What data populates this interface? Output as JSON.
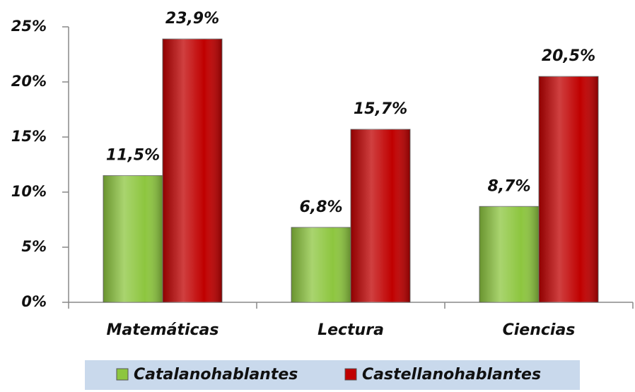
{
  "chart_data": {
    "type": "bar",
    "categories": [
      "Matemáticas",
      "Lectura",
      "Ciencias"
    ],
    "series": [
      {
        "name": "Catalanohablantes",
        "color": "#8dc63f",
        "values": [
          11.5,
          6.8,
          8.7
        ],
        "value_labels": [
          "11,5%",
          "6,8%",
          "8,7%"
        ]
      },
      {
        "name": "Castellanohablantes",
        "color": "#c00000",
        "values": [
          23.9,
          15.7,
          20.5
        ],
        "value_labels": [
          "23,9%",
          "15,7%",
          "20,5%"
        ]
      }
    ],
    "ylim": [
      0,
      25
    ],
    "yticks": [
      {
        "value": 0,
        "label": "0%"
      },
      {
        "value": 5,
        "label": "5%"
      },
      {
        "value": 10,
        "label": "10%"
      },
      {
        "value": 15,
        "label": "15%"
      },
      {
        "value": 20,
        "label": "20%"
      },
      {
        "value": 25,
        "label": "25%"
      }
    ],
    "legend": "bottom"
  }
}
